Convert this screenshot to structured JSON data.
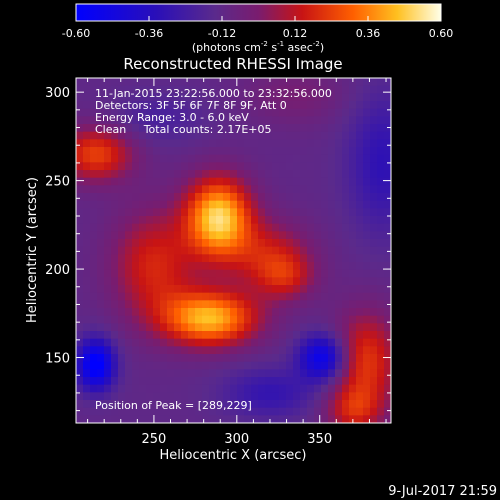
{
  "chart_data": {
    "type": "heatmap",
    "title": "Reconstructed RHESSI Image",
    "xlabel": "Heliocentric X (arcsec)",
    "ylabel": "Heliocentric Y (arcsec)",
    "xlim": [
      203,
      393
    ],
    "ylim": [
      113,
      308
    ],
    "x_ticks": [
      250,
      300,
      350
    ],
    "y_ticks": [
      150,
      200,
      250,
      300
    ],
    "colorbar": {
      "min": -0.6,
      "max": 0.6,
      "ticks": [
        "-0.60",
        "-0.36",
        "-0.12",
        "0.12",
        "0.36",
        "0.60"
      ],
      "label_prefix": "(photons cm",
      "label_exp1": "-2",
      "label_mid": " s",
      "label_exp2": "-1",
      "label_mid2": " asec",
      "label_exp3": "-2",
      "label_suffix": ")"
    },
    "annotations": [
      "11-Jan-2015 23:22:56.000 to 23:32:56.000",
      "Detectors: 3F 5F 6F 7F 8F 9F, Att 0",
      "Energy Range: 3.0 - 6.0 keV",
      "Clean     Total counts: 2.17E+05"
    ],
    "peak_label": "Position of Peak = [289,229]",
    "peak": [
      289,
      229
    ],
    "sources": [
      {
        "x": 289,
        "y": 229,
        "amp": 0.62,
        "sx": 14,
        "sy": 16
      },
      {
        "x": 284,
        "y": 172,
        "amp": 0.56,
        "sx": 20,
        "sy": 11
      },
      {
        "x": 250,
        "y": 202,
        "amp": 0.3,
        "sx": 18,
        "sy": 22
      },
      {
        "x": 320,
        "y": 207,
        "amp": 0.26,
        "sx": 18,
        "sy": 14
      },
      {
        "x": 330,
        "y": 195,
        "amp": 0.18,
        "sx": 12,
        "sy": 9
      },
      {
        "x": 215,
        "y": 265,
        "amp": 0.36,
        "sx": 16,
        "sy": 11
      },
      {
        "x": 378,
        "y": 148,
        "amp": 0.34,
        "sx": 14,
        "sy": 20
      },
      {
        "x": 370,
        "y": 120,
        "amp": 0.24,
        "sx": 12,
        "sy": 10
      },
      {
        "x": 335,
        "y": 298,
        "amp": 0.1,
        "sx": 22,
        "sy": 12
      },
      {
        "x": 215,
        "y": 146,
        "amp": -0.52,
        "sx": 8,
        "sy": 10
      },
      {
        "x": 352,
        "y": 150,
        "amp": -0.44,
        "sx": 10,
        "sy": 9
      },
      {
        "x": 388,
        "y": 260,
        "amp": -0.2,
        "sx": 15,
        "sy": 28
      },
      {
        "x": 320,
        "y": 130,
        "amp": -0.18,
        "sx": 20,
        "sy": 10
      },
      {
        "x": 252,
        "y": 285,
        "amp": -0.1,
        "sx": 20,
        "sy": 10
      }
    ],
    "baseline": -0.12
  },
  "footer": {
    "timestamp": "9-Jul-2017 21:59"
  }
}
